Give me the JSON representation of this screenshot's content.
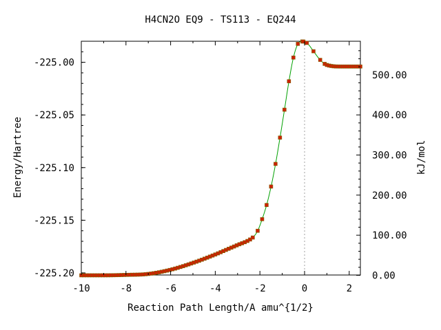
{
  "chart_data": {
    "type": "line",
    "title": "H4CN2O   EQ9 - TS113 - EQ244",
    "xlabel": "Reaction Path Length/A amu^{1/2}",
    "ylabel_left": "Energy/Hartree",
    "ylabel_right": "kJ/mol",
    "xlim": [
      -10,
      2.5
    ],
    "ylim_left": [
      -225.202,
      -224.98
    ],
    "x_ticks": [
      -10,
      -8,
      -6,
      -4,
      -2,
      0,
      2
    ],
    "x_tick_labels": [
      "-10",
      "-8",
      "-6",
      "-4",
      "-2",
      "0",
      "2"
    ],
    "y_left_ticks": [
      -225.2,
      -225.15,
      -225.1,
      -225.05,
      -225.0
    ],
    "y_left_tick_labels": [
      "-225.20",
      "-225.15",
      "-225.10",
      "-225.05",
      "-225.00"
    ],
    "y_right_ticks": [
      0,
      100,
      200,
      300,
      400,
      500
    ],
    "y_right_tick_labels": [
      "0.00",
      "100.00",
      "200.00",
      "300.00",
      "400.00",
      "500.00"
    ],
    "y_right_zero_hartree": -225.2023,
    "hartree_to_kjmol": 2625.5,
    "ts_x": 0,
    "grid": false,
    "legend": "none",
    "colors": {
      "line": "#00a000",
      "marker": "#cc2200",
      "marker_edge": "#806000",
      "ts_line": "#a0a0a0"
    },
    "anchors_x": [
      -10,
      -9,
      -8,
      -7,
      -6,
      -5,
      -4,
      -3.5,
      -3,
      -2.5,
      -2.3,
      -2.1,
      -1.9,
      -1.7,
      -1.5,
      -1.3,
      -1.1,
      -0.9,
      -0.7,
      -0.5,
      -0.3,
      -0.15,
      0,
      0.15,
      0.4,
      0.65,
      0.9,
      1.2,
      1.6,
      2.0,
      2.5
    ],
    "anchors_y": [
      -225.2023,
      -225.2023,
      -225.2019,
      -225.201,
      -225.197,
      -225.1905,
      -225.1825,
      -225.178,
      -225.1735,
      -225.169,
      -225.166,
      -225.16,
      -225.149,
      -225.1355,
      -225.118,
      -225.0965,
      -225.0715,
      -225.045,
      -225.018,
      -224.9955,
      -224.9825,
      -224.9802,
      -224.9805,
      -224.9825,
      -224.9895,
      -224.9965,
      -225.0015,
      -225.0035,
      -225.004,
      -225.004,
      -225.004
    ]
  }
}
